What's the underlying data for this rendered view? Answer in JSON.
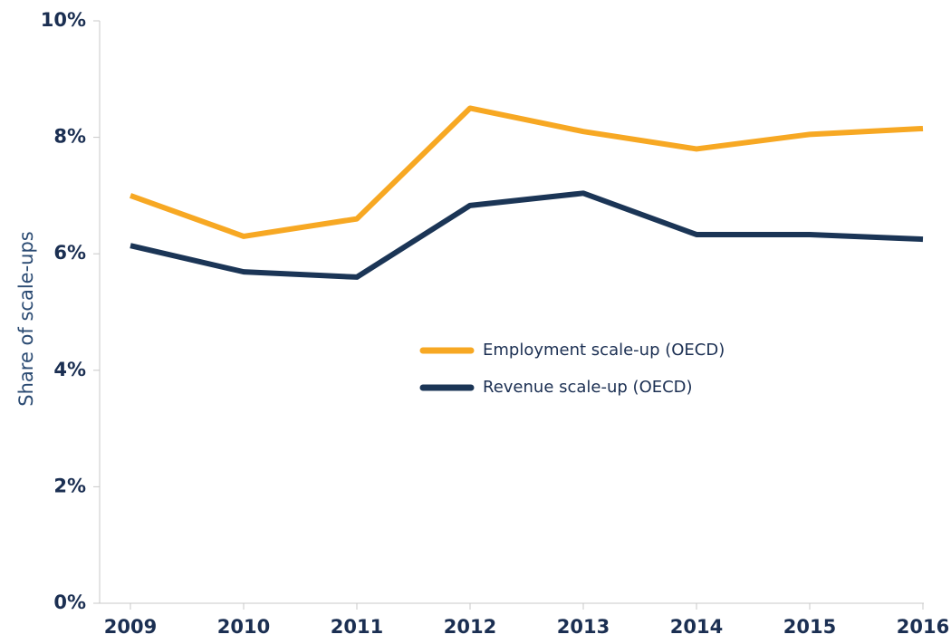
{
  "chart_data": {
    "type": "line",
    "y_label": "Share of scale-ups",
    "categories": [
      "2009",
      "2010",
      "2011",
      "2012",
      "2013",
      "2014",
      "2015",
      "2016"
    ],
    "series": [
      {
        "name": "Employment scale-up (OECD)",
        "color": "#f7a823",
        "values": [
          7.0,
          6.3,
          6.6,
          8.5,
          8.1,
          7.8,
          8.05,
          8.15
        ]
      },
      {
        "name": "Revenue scale-up (OECD)",
        "color": "#1b3556",
        "values": [
          6.14,
          5.69,
          5.6,
          6.83,
          7.04,
          6.33,
          6.33,
          6.25
        ]
      }
    ],
    "ylim": [
      0,
      10
    ],
    "yticks": [
      {
        "value": 0,
        "label": "0%"
      },
      {
        "value": 2,
        "label": "2%"
      },
      {
        "value": 4,
        "label": "4%"
      },
      {
        "value": 6,
        "label": "6%"
      },
      {
        "value": 8,
        "label": "8%"
      },
      {
        "value": 10,
        "label": "10%"
      }
    ],
    "grid": false,
    "legend": "center"
  }
}
